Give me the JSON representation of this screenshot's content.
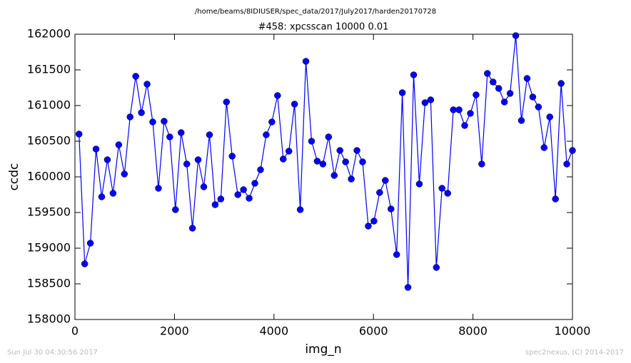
{
  "chart_data": {
    "type": "line",
    "suptitle": "/home/beams/8IDIUSER/spec_data/2017/July2017/harden20170728",
    "title": "#458: xpcsscan 10000 0.01",
    "x_label": "img_n",
    "y_label": "ccdc",
    "footer_left": "Sun Jul 30 04:30:56 2017",
    "footer_right": "spec2nexus, (C) 2014-2017",
    "x": [
      82,
      196,
      310,
      424,
      538,
      652,
      766,
      880,
      994,
      1108,
      1222,
      1336,
      1450,
      1564,
      1678,
      1792,
      1906,
      2020,
      2134,
      2248,
      2362,
      2476,
      2590,
      2704,
      2818,
      2932,
      3046,
      3160,
      3274,
      3388,
      3502,
      3616,
      3730,
      3844,
      3958,
      4072,
      4186,
      4300,
      4414,
      4528,
      4642,
      4756,
      4870,
      4984,
      5098,
      5212,
      5326,
      5440,
      5554,
      5668,
      5782,
      5896,
      6010,
      6124,
      6238,
      6352,
      6466,
      6580,
      6694,
      6808,
      6922,
      7036,
      7150,
      7264,
      7378,
      7492,
      7606,
      7720,
      7834,
      7948,
      8062,
      8176,
      8290,
      8404,
      8518,
      8632,
      8746,
      8860,
      8974,
      9088,
      9202,
      9316,
      9430,
      9544,
      9658,
      9772,
      9886,
      10000
    ],
    "series": [
      {
        "color": "#0000ff",
        "values": [
          160600,
          158780,
          159070,
          160390,
          159720,
          160240,
          159770,
          160450,
          160040,
          160840,
          161410,
          160900,
          161300,
          160770,
          159840,
          160780,
          160560,
          159540,
          160620,
          160180,
          159280,
          160240,
          159860,
          160590,
          159610,
          159690,
          161050,
          160290,
          159750,
          159820,
          159700,
          159910,
          160100,
          160590,
          160770,
          161140,
          160250,
          160360,
          161020,
          159540,
          161620,
          160500,
          160220,
          160180,
          160560,
          160020,
          160370,
          160210,
          159970,
          160370,
          160210,
          159310,
          159380,
          159780,
          159950,
          159550,
          158910,
          161180,
          158450,
          161430,
          159900,
          161040,
          161080,
          158730,
          159840,
          159770,
          160940,
          160940,
          160720,
          160890,
          161150,
          160180,
          161450,
          161330,
          161240,
          161050,
          161170,
          161980,
          160790,
          161380,
          161120,
          160980,
          160410,
          160840,
          159690,
          161310,
          160180,
          160370
        ]
      }
    ],
    "xlim": [
      0,
      10000
    ],
    "xticks": [
      0,
      2000,
      4000,
      6000,
      8000,
      10000
    ],
    "ylim": [
      158000,
      162000
    ],
    "yticks": [
      158000,
      158500,
      159000,
      159500,
      160000,
      160500,
      161000,
      161500,
      162000
    ],
    "grid": false
  }
}
